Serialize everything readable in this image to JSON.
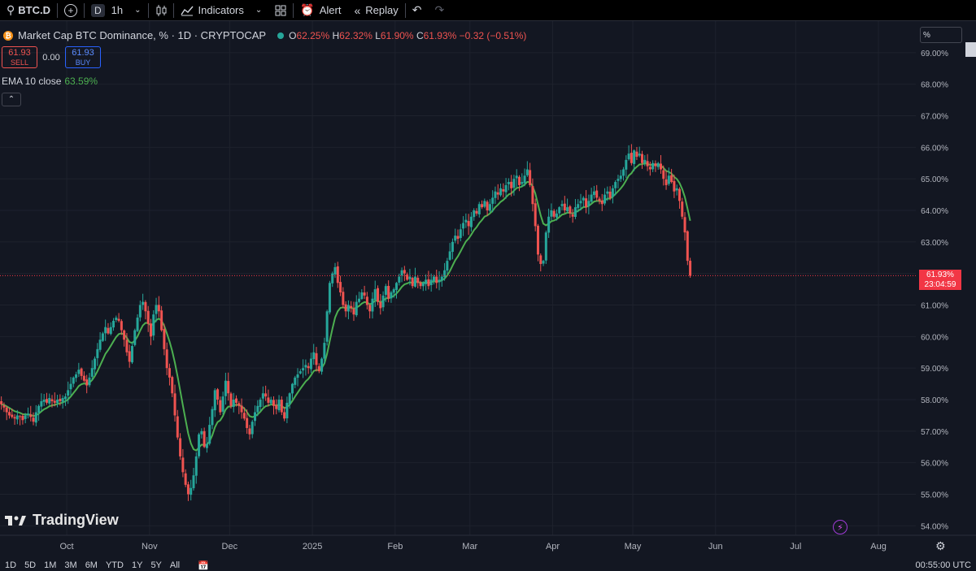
{
  "toolbar": {
    "symbol": "BTC.D",
    "interval_badge": "D",
    "interval": "1h",
    "indicators_label": "Indicators",
    "alert_label": "Alert",
    "replay_label": "Replay"
  },
  "legend": {
    "coin_glyph": "₿",
    "title": "Market Cap BTC Dominance, % · 1D · CRYPTOCAP",
    "o_label": "O",
    "o_value": "62.25%",
    "h_label": "H",
    "h_value": "62.32%",
    "l_label": "L",
    "l_value": "61.90%",
    "c_label": "C",
    "c_value": "61.93%",
    "change": "−0.32 (−0.51%)"
  },
  "trade": {
    "sell_price": "61.93",
    "sell_label": "SELL",
    "spread": "0.00",
    "buy_price": "61.93",
    "buy_label": "BUY"
  },
  "ema": {
    "label": "EMA 10 close",
    "value": "63.59%"
  },
  "axis": {
    "unit": "%"
  },
  "price_tag": {
    "value": "61.93%",
    "countdown": "23:04:59",
    "color": "#f23645"
  },
  "brand": {
    "name": "TradingView"
  },
  "bottom": {
    "ranges": [
      "1D",
      "5D",
      "1M",
      "3M",
      "6M",
      "YTD",
      "1Y",
      "5Y",
      "All"
    ],
    "clock": "00:55:00 UTC"
  },
  "colors": {
    "up": "#26a69a",
    "down": "#ef5350",
    "ema": "#4caf50",
    "bg": "#131722",
    "grid": "#1e222d"
  },
  "chart_data": {
    "type": "candlestick",
    "y_ticks": [
      "54.00%",
      "55.00%",
      "56.00%",
      "57.00%",
      "58.00%",
      "59.00%",
      "60.00%",
      "61.00%",
      "62.00%",
      "63.00%",
      "64.00%",
      "65.00%",
      "66.00%",
      "67.00%",
      "68.00%",
      "69.00%"
    ],
    "ylim": [
      53.7,
      70.0
    ],
    "x_ticks": [
      {
        "label": "Oct",
        "day": 25
      },
      {
        "label": "Nov",
        "day": 56
      },
      {
        "label": "Dec",
        "day": 86
      },
      {
        "label": "2025",
        "day": 117
      },
      {
        "label": "Feb",
        "day": 148
      },
      {
        "label": "Mar",
        "day": 176
      },
      {
        "label": "Apr",
        "day": 207
      },
      {
        "label": "May",
        "day": 237
      },
      {
        "label": "Jun",
        "day": 268
      },
      {
        "label": "Jul",
        "day": 298
      },
      {
        "label": "Aug",
        "day": 329
      }
    ],
    "xlim": [
      0,
      343
    ],
    "closes": [
      57.85,
      57.75,
      57.6,
      57.5,
      57.45,
      57.4,
      57.5,
      57.45,
      57.35,
      57.5,
      57.55,
      57.45,
      57.3,
      57.6,
      57.8,
      57.95,
      58.0,
      57.9,
      58.05,
      57.95,
      57.9,
      58.0,
      57.95,
      58.05,
      58.1,
      58.3,
      58.5,
      58.7,
      58.8,
      58.95,
      58.75,
      58.6,
      58.45,
      58.7,
      59.0,
      59.3,
      59.6,
      59.9,
      60.1,
      60.3,
      60.1,
      60.3,
      60.5,
      60.6,
      60.5,
      60.2,
      59.9,
      59.5,
      59.2,
      59.7,
      60.2,
      60.6,
      61.0,
      61.1,
      60.8,
      60.4,
      60.0,
      60.7,
      61.0,
      60.8,
      60.2,
      59.6,
      59.0,
      58.7,
      58.2,
      57.5,
      56.8,
      56.2,
      55.7,
      55.3,
      55.0,
      55.2,
      55.6,
      56.2,
      56.9,
      57.0,
      56.5,
      56.6,
      57.2,
      57.7,
      58.3,
      58.0,
      57.6,
      58.1,
      58.6,
      58.2,
      57.8,
      58.0,
      57.9,
      57.8,
      57.6,
      57.4,
      57.1,
      56.9,
      57.3,
      57.6,
      57.8,
      58.0,
      58.2,
      58.1,
      57.9,
      58.0,
      57.8,
      57.7,
      58.0,
      57.6,
      57.4,
      57.9,
      58.2,
      58.5,
      58.7,
      58.8,
      58.9,
      59.0,
      59.1,
      59.0,
      59.3,
      59.5,
      59.1,
      58.9,
      59.3,
      59.8,
      60.8,
      61.7,
      62.0,
      62.2,
      61.7,
      61.4,
      61.0,
      60.8,
      61.0,
      60.9,
      60.7,
      61.1,
      61.2,
      61.4,
      61.3,
      61.0,
      60.8,
      61.2,
      61.5,
      61.1,
      60.9,
      61.3,
      61.6,
      61.2,
      61.4,
      61.5,
      61.7,
      61.9,
      62.1,
      62.0,
      61.8,
      61.9,
      61.6,
      61.9,
      61.7,
      61.6,
      61.7,
      61.8,
      61.6,
      61.8,
      61.9,
      61.7,
      61.8,
      61.9,
      62.1,
      62.4,
      62.7,
      63.0,
      63.2,
      63.1,
      63.4,
      63.6,
      63.7,
      63.5,
      63.8,
      64.0,
      63.9,
      64.2,
      64.1,
      64.3,
      64.0,
      64.2,
      64.4,
      64.6,
      64.5,
      64.7,
      64.6,
      64.8,
      64.9,
      64.7,
      65.0,
      65.1,
      64.8,
      64.9,
      65.1,
      65.3,
      64.8,
      64.2,
      63.5,
      62.6,
      62.3,
      62.4,
      63.3,
      63.8,
      64.0,
      63.8,
      63.9,
      64.1,
      64.2,
      64.0,
      64.1,
      63.9,
      63.8,
      64.1,
      64.2,
      64.3,
      64.4,
      64.1,
      64.3,
      64.5,
      64.6,
      64.4,
      64.3,
      64.2,
      64.5,
      64.6,
      64.4,
      64.7,
      64.9,
      65.0,
      65.1,
      65.3,
      65.6,
      65.8,
      65.5,
      65.9,
      65.7,
      65.8,
      65.5,
      65.6,
      65.4,
      65.3,
      65.5,
      65.4,
      65.5,
      65.3,
      65.0,
      64.8,
      65.1,
      64.9,
      64.6,
      64.7,
      64.3,
      63.8,
      63.3,
      62.4,
      61.93
    ]
  }
}
